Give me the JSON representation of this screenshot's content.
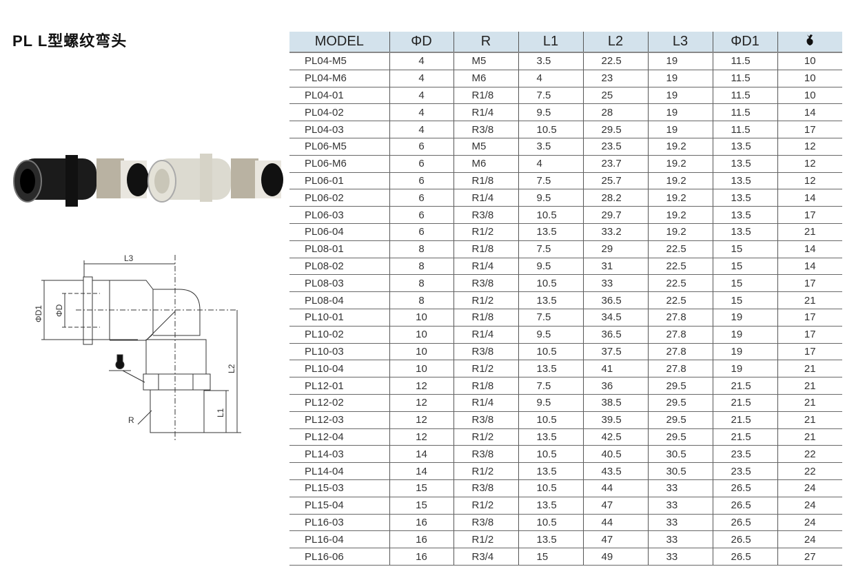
{
  "title": "PL L型螺纹弯头",
  "drawing_labels": {
    "l3": "L3",
    "d1": "ΦD1",
    "d": "ΦD",
    "l2": "L2",
    "l1": "L1",
    "r": "R"
  },
  "table": {
    "headers": [
      "MODEL",
      "ΦD",
      "R",
      "L1",
      "L2",
      "L3",
      "ΦD1",
      "wrench-icon"
    ],
    "rows": [
      [
        "PL04-M5",
        "4",
        "M5",
        "3.5",
        "22.5",
        "19",
        "11.5",
        "10"
      ],
      [
        "PL04-M6",
        "4",
        "M6",
        "4",
        "23",
        "19",
        "11.5",
        "10"
      ],
      [
        "PL04-01",
        "4",
        "R1/8",
        "7.5",
        "25",
        "19",
        "11.5",
        "10"
      ],
      [
        "PL04-02",
        "4",
        "R1/4",
        "9.5",
        "28",
        "19",
        "11.5",
        "14"
      ],
      [
        "PL04-03",
        "4",
        "R3/8",
        "10.5",
        "29.5",
        "19",
        "11.5",
        "17"
      ],
      [
        "PL06-M5",
        "6",
        "M5",
        "3.5",
        "23.5",
        "19.2",
        "13.5",
        "12"
      ],
      [
        "PL06-M6",
        "6",
        "M6",
        "4",
        "23.7",
        "19.2",
        "13.5",
        "12"
      ],
      [
        "PL06-01",
        "6",
        "R1/8",
        "7.5",
        "25.7",
        "19.2",
        "13.5",
        "12"
      ],
      [
        "PL06-02",
        "6",
        "R1/4",
        "9.5",
        "28.2",
        "19.2",
        "13.5",
        "14"
      ],
      [
        "PL06-03",
        "6",
        "R3/8",
        "10.5",
        "29.7",
        "19.2",
        "13.5",
        "17"
      ],
      [
        "PL06-04",
        "6",
        "R1/2",
        "13.5",
        "33.2",
        "19.2",
        "13.5",
        "21"
      ],
      [
        "PL08-01",
        "8",
        "R1/8",
        "7.5",
        "29",
        "22.5",
        "15",
        "14"
      ],
      [
        "PL08-02",
        "8",
        "R1/4",
        "9.5",
        "31",
        "22.5",
        "15",
        "14"
      ],
      [
        "PL08-03",
        "8",
        "R3/8",
        "10.5",
        "33",
        "22.5",
        "15",
        "17"
      ],
      [
        "PL08-04",
        "8",
        "R1/2",
        "13.5",
        "36.5",
        "22.5",
        "15",
        "21"
      ],
      [
        "PL10-01",
        "10",
        "R1/8",
        "7.5",
        "34.5",
        "27.8",
        "19",
        "17"
      ],
      [
        "PL10-02",
        "10",
        "R1/4",
        "9.5",
        "36.5",
        "27.8",
        "19",
        "17"
      ],
      [
        "PL10-03",
        "10",
        "R3/8",
        "10.5",
        "37.5",
        "27.8",
        "19",
        "17"
      ],
      [
        "PL10-04",
        "10",
        "R1/2",
        "13.5",
        "41",
        "27.8",
        "19",
        "21"
      ],
      [
        "PL12-01",
        "12",
        "R1/8",
        "7.5",
        "36",
        "29.5",
        "21.5",
        "21"
      ],
      [
        "PL12-02",
        "12",
        "R1/4",
        "9.5",
        "38.5",
        "29.5",
        "21.5",
        "21"
      ],
      [
        "PL12-03",
        "12",
        "R3/8",
        "10.5",
        "39.5",
        "29.5",
        "21.5",
        "21"
      ],
      [
        "PL12-04",
        "12",
        "R1/2",
        "13.5",
        "42.5",
        "29.5",
        "21.5",
        "21"
      ],
      [
        "PL14-03",
        "14",
        "R3/8",
        "10.5",
        "40.5",
        "30.5",
        "23.5",
        "22"
      ],
      [
        "PL14-04",
        "14",
        "R1/2",
        "13.5",
        "43.5",
        "30.5",
        "23.5",
        "22"
      ],
      [
        "PL15-03",
        "15",
        "R3/8",
        "10.5",
        "44",
        "33",
        "26.5",
        "24"
      ],
      [
        "PL15-04",
        "15",
        "R1/2",
        "13.5",
        "47",
        "33",
        "26.5",
        "24"
      ],
      [
        "PL16-03",
        "16",
        "R3/8",
        "10.5",
        "44",
        "33",
        "26.5",
        "24"
      ],
      [
        "PL16-04",
        "16",
        "R1/2",
        "13.5",
        "47",
        "33",
        "26.5",
        "24"
      ],
      [
        "PL16-06",
        "16",
        "R3/4",
        "15",
        "49",
        "33",
        "26.5",
        "27"
      ]
    ]
  }
}
